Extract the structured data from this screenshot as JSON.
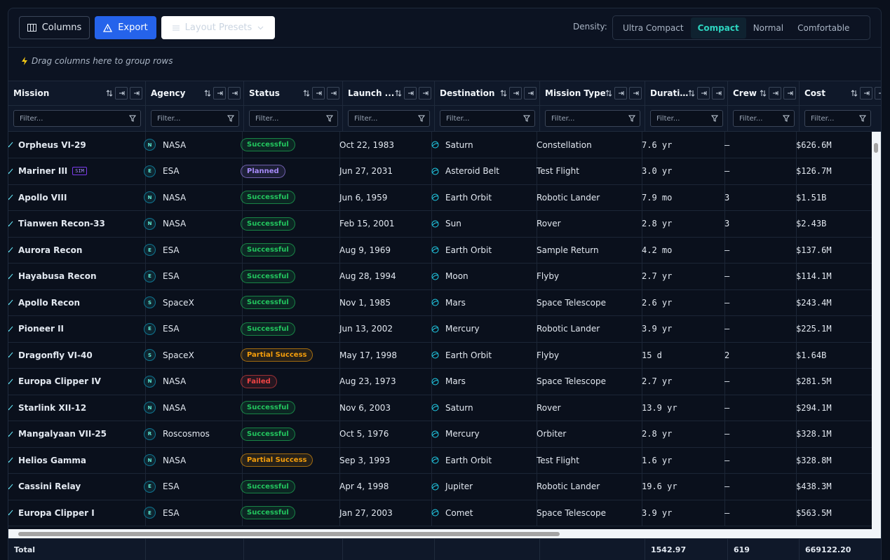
{
  "toolbar": {
    "columns_button": "Columns",
    "export_button": "Export",
    "layout_presets": "Layout Presets",
    "density_label": "Density:",
    "density_options": [
      "Ultra Compact",
      "Compact",
      "Normal",
      "Comfortable"
    ],
    "density_selected": 1
  },
  "group_bar": "Drag columns here to group rows",
  "columns": [
    "Mission",
    "Agency",
    "Status",
    "Launch ...",
    "Destination",
    "Mission Type",
    "Durati…",
    "Crew",
    "Cost"
  ],
  "filter_placeholder": "Filter...",
  "rows": [
    {
      "mission": "Orpheus VI-29",
      "agency_initial": "N",
      "agency": "NASA",
      "status": "Successful",
      "status_color": "#22c55e",
      "launch": "Oct 22, 1983",
      "destination": "Saturn",
      "mission_type": "Constellation",
      "duration": "7.6 yr",
      "crew": "—",
      "cost": "$626.6M"
    },
    {
      "mission": "Mariner III",
      "badge": "SIM",
      "agency_initial": "E",
      "agency": "ESA",
      "status": "Planned",
      "status_color": "#a78bfa",
      "launch": "Jun 27, 2031",
      "destination": "Asteroid Belt",
      "mission_type": "Test Flight",
      "duration": "3.0 yr",
      "crew": "—",
      "cost": "$126.7M"
    },
    {
      "mission": "Apollo VIII",
      "agency_initial": "N",
      "agency": "NASA",
      "status": "Successful",
      "status_color": "#22c55e",
      "launch": "Jun 6, 1959",
      "destination": "Earth Orbit",
      "mission_type": "Robotic Lander",
      "duration": "7.9 mo",
      "crew": "3",
      "cost": "$1.51B"
    },
    {
      "mission": "Tianwen Recon-33",
      "agency_initial": "N",
      "agency": "NASA",
      "status": "Successful",
      "status_color": "#22c55e",
      "launch": "Feb 15, 2001",
      "destination": "Sun",
      "mission_type": "Rover",
      "duration": "2.8 yr",
      "crew": "3",
      "cost": "$2.43B"
    },
    {
      "mission": "Aurora Recon",
      "agency_initial": "E",
      "agency": "ESA",
      "status": "Successful",
      "status_color": "#22c55e",
      "launch": "Aug 9, 1969",
      "destination": "Earth Orbit",
      "mission_type": "Sample Return",
      "duration": "4.2 mo",
      "crew": "—",
      "cost": "$137.6M"
    },
    {
      "mission": "Hayabusa Recon",
      "agency_initial": "E",
      "agency": "ESA",
      "status": "Successful",
      "status_color": "#22c55e",
      "launch": "Aug 28, 1994",
      "destination": "Moon",
      "mission_type": "Flyby",
      "duration": "2.7 yr",
      "crew": "—",
      "cost": "$114.1M"
    },
    {
      "mission": "Apollo Recon",
      "agency_initial": "S",
      "agency": "SpaceX",
      "status": "Successful",
      "status_color": "#22c55e",
      "launch": "Nov 1, 1985",
      "destination": "Mars",
      "mission_type": "Space Telescope",
      "duration": "2.6 yr",
      "crew": "—",
      "cost": "$243.4M"
    },
    {
      "mission": "Pioneer II",
      "agency_initial": "E",
      "agency": "ESA",
      "status": "Successful",
      "status_color": "#22c55e",
      "launch": "Jun 13, 2002",
      "destination": "Mercury",
      "mission_type": "Robotic Lander",
      "duration": "3.9 yr",
      "crew": "—",
      "cost": "$225.1M"
    },
    {
      "mission": "Dragonfly VI-40",
      "agency_initial": "S",
      "agency": "SpaceX",
      "status": "Partial Success",
      "status_color": "#f59e0b",
      "launch": "May 17, 1998",
      "destination": "Earth Orbit",
      "mission_type": "Flyby",
      "duration": "15 d",
      "crew": "2",
      "cost": "$1.64B"
    },
    {
      "mission": "Europa Clipper IV",
      "agency_initial": "N",
      "agency": "NASA",
      "status": "Failed",
      "status_color": "#ef4444",
      "launch": "Aug 23, 1973",
      "destination": "Mars",
      "mission_type": "Space Telescope",
      "duration": "2.7 yr",
      "crew": "—",
      "cost": "$281.5M"
    },
    {
      "mission": "Starlink XII-12",
      "agency_initial": "N",
      "agency": "NASA",
      "status": "Successful",
      "status_color": "#22c55e",
      "launch": "Nov 6, 2003",
      "destination": "Saturn",
      "mission_type": "Rover",
      "duration": "13.9 yr",
      "crew": "—",
      "cost": "$294.1M"
    },
    {
      "mission": "Mangalyaan VII-25",
      "agency_initial": "R",
      "agency": "Roscosmos",
      "status": "Successful",
      "status_color": "#22c55e",
      "launch": "Oct 5, 1976",
      "destination": "Mercury",
      "mission_type": "Orbiter",
      "duration": "2.8 yr",
      "crew": "—",
      "cost": "$328.1M"
    },
    {
      "mission": "Helios Gamma",
      "agency_initial": "N",
      "agency": "NASA",
      "status": "Partial Success",
      "status_color": "#f59e0b",
      "launch": "Sep 3, 1993",
      "destination": "Earth Orbit",
      "mission_type": "Test Flight",
      "duration": "1.6 yr",
      "crew": "—",
      "cost": "$328.8M"
    },
    {
      "mission": "Cassini Relay",
      "agency_initial": "E",
      "agency": "ESA",
      "status": "Successful",
      "status_color": "#22c55e",
      "launch": "Apr 4, 1998",
      "destination": "Jupiter",
      "mission_type": "Robotic Lander",
      "duration": "19.6 yr",
      "crew": "—",
      "cost": "$438.3M"
    },
    {
      "mission": "Europa Clipper I",
      "agency_initial": "E",
      "agency": "ESA",
      "status": "Successful",
      "status_color": "#22c55e",
      "launch": "Jan 27, 2003",
      "destination": "Comet",
      "mission_type": "Space Telescope",
      "duration": "3.9 yr",
      "crew": "—",
      "cost": "$563.5M"
    }
  ],
  "footer": {
    "label": "Total",
    "duration": "1542.97",
    "crew": "619",
    "cost": "669122.20"
  }
}
